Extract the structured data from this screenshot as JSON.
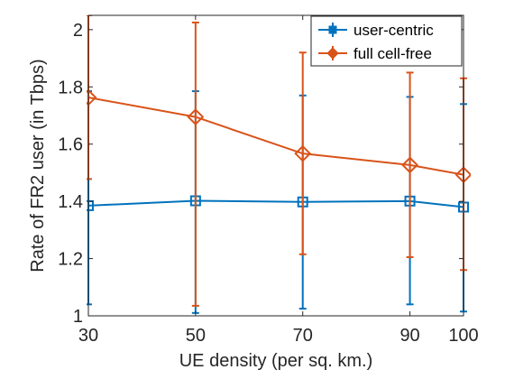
{
  "chart_data": {
    "type": "line",
    "title": "",
    "xlabel": "UE density (per sq. km.)",
    "ylabel": "Rate of FR2 user (in Tbps)",
    "x": [
      30,
      50,
      70,
      90,
      100
    ],
    "x_ticks": [
      30,
      50,
      70,
      90,
      100
    ],
    "y_ticks": [
      1,
      1.2,
      1.4,
      1.6,
      1.8,
      2
    ],
    "xlim": [
      30,
      100
    ],
    "ylim": [
      1,
      2.05
    ],
    "grid": false,
    "legend_position": "top-right",
    "error_bars": true,
    "series": [
      {
        "name": "user-centric",
        "color": "#0072BD",
        "marker": "square",
        "values": [
          1.385,
          1.402,
          1.398,
          1.401,
          1.38
        ],
        "err_low": [
          1.04,
          1.01,
          1.025,
          1.04,
          1.015
        ],
        "err_high": [
          1.785,
          1.785,
          1.77,
          1.765,
          1.74
        ]
      },
      {
        "name": "full cell-free",
        "color": "#D95319",
        "marker": "diamond",
        "values": [
          1.763,
          1.695,
          1.567,
          1.527,
          1.493
        ],
        "err_low": [
          1.478,
          1.035,
          1.215,
          1.205,
          1.16
        ],
        "err_high": [
          2.05,
          2.025,
          1.92,
          1.85,
          1.83
        ]
      }
    ]
  }
}
